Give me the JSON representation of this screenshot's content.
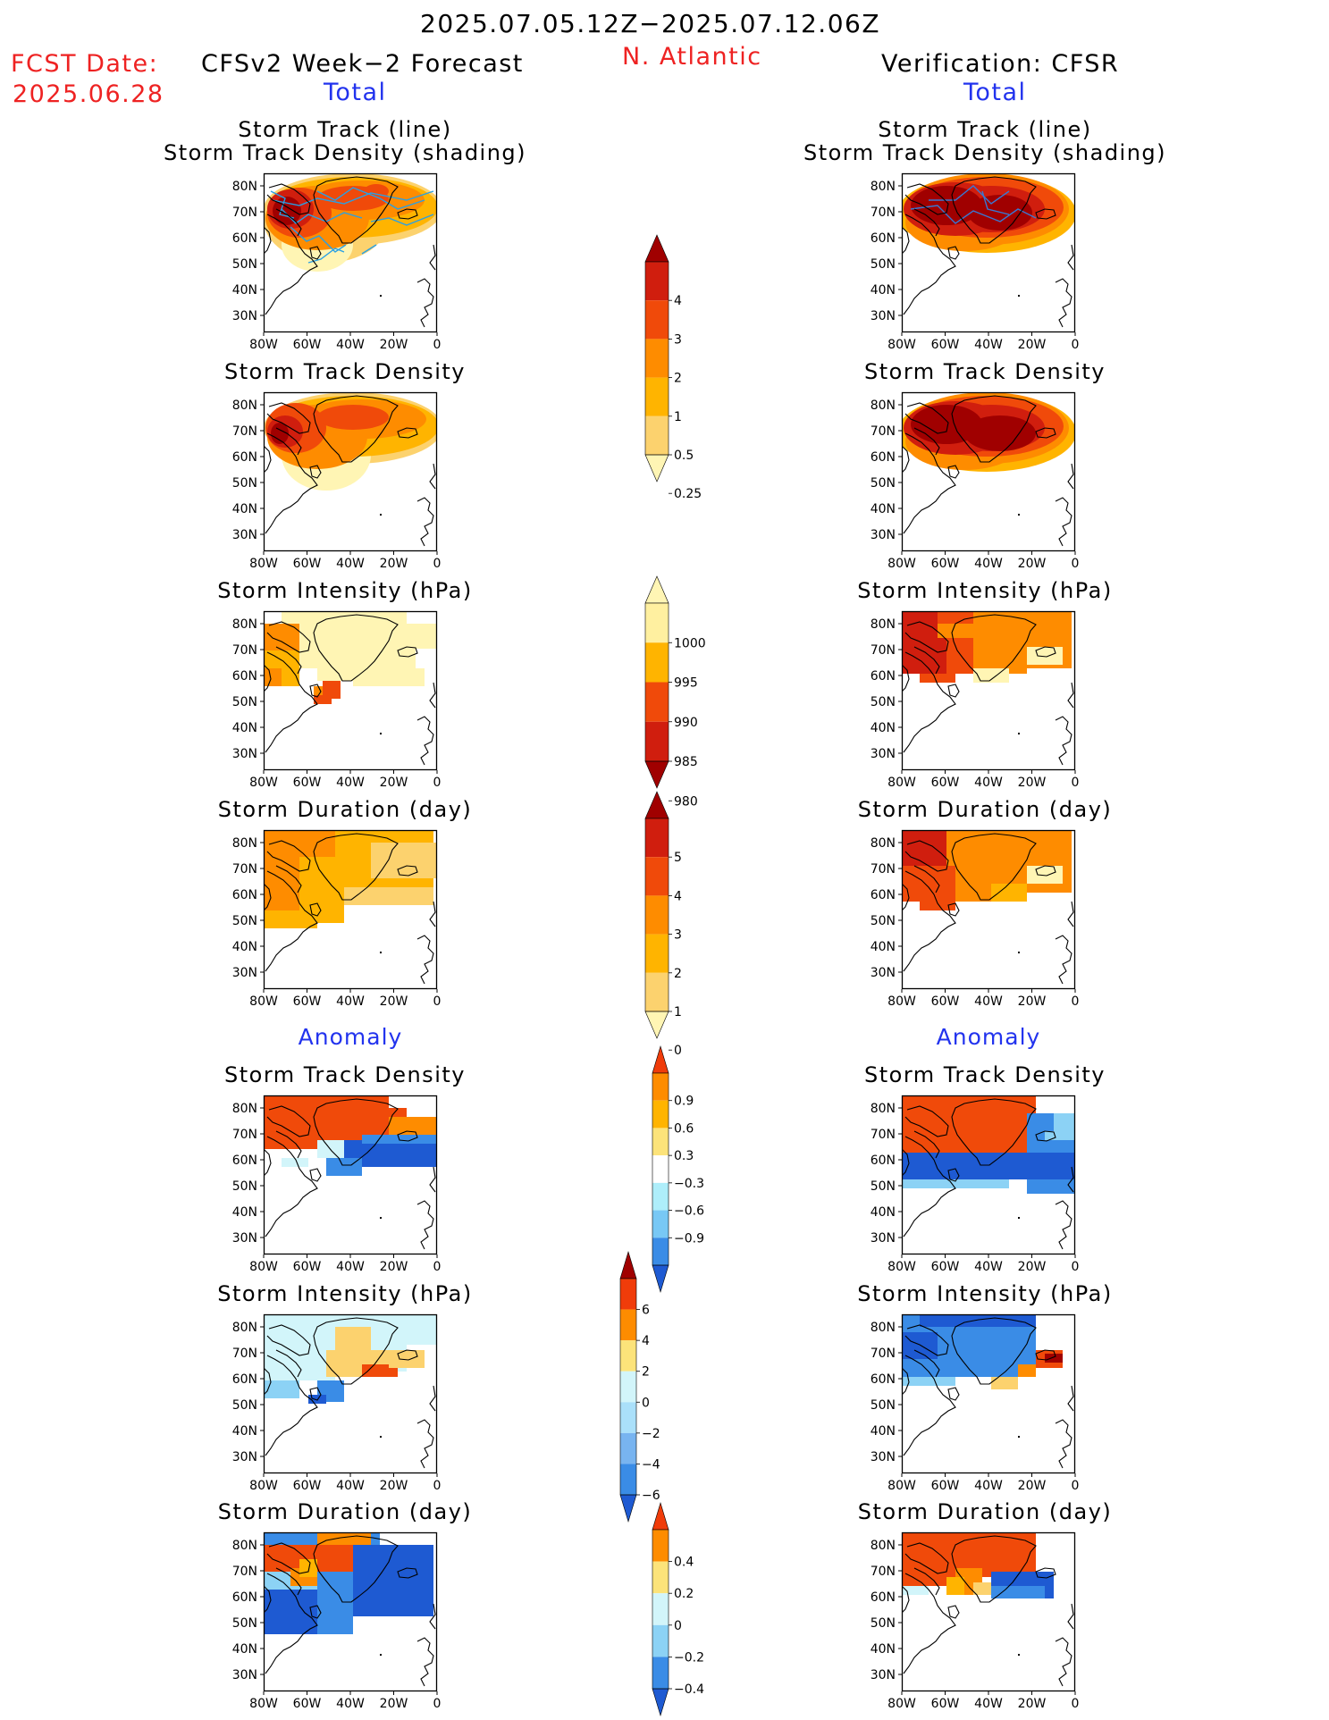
{
  "header": {
    "period": "2025.07.05.12Z−2025.07.12.06Z",
    "fcst_label": "FCST Date:",
    "fcst_date": "2025.06.28",
    "region": "N. Atlantic",
    "left_title": "CFSv2 Week−2 Forecast",
    "right_title": "Verification: CFSR",
    "total_left": "Total",
    "total_right": "Total"
  },
  "sections": {
    "anomaly_left": "Anomaly",
    "anomaly_right": "Anomaly"
  },
  "panel_titles": {
    "track1": "Storm Track (line)",
    "track2": "Storm Track Density (shading)",
    "density": "Storm Track Density",
    "intensity": "Storm Intensity (hPa)",
    "duration": "Storm Duration (day)"
  },
  "map_axes": {
    "lat_ticks": [
      "80N",
      "70N",
      "60N",
      "50N",
      "40N",
      "30N"
    ],
    "lon_ticks": [
      "80W",
      "60W",
      "40W",
      "20W",
      "0"
    ]
  },
  "colorbars": [
    {
      "name": "track-density",
      "labels": [
        "4",
        "3",
        "2",
        "1",
        "0.5",
        "0.25"
      ],
      "colors": [
        "#a00000",
        "#d01e0e",
        "#f04a0a",
        "#fe8c00",
        "#ffb400",
        "#fcd26e",
        "#fff5b4"
      ]
    },
    {
      "name": "intensity",
      "labels": [
        "1000",
        "995",
        "990",
        "985",
        "980"
      ],
      "colors": [
        "#fff5b4",
        "#fff0a0",
        "#ffb400",
        "#f04a0a",
        "#d01e0e",
        "#a00000"
      ]
    },
    {
      "name": "duration",
      "labels": [
        "5",
        "4",
        "3",
        "2",
        "1",
        "0"
      ],
      "colors": [
        "#a00000",
        "#d01e0e",
        "#f04a0a",
        "#fe8c00",
        "#ffb400",
        "#fcd26e",
        "#fff5b4"
      ]
    },
    {
      "name": "density-anomaly",
      "labels": [
        "0.9",
        "0.6",
        "0.3",
        "−0.3",
        "−0.6",
        "−0.9"
      ],
      "colors": [
        "#f03c0a",
        "#fe8c00",
        "#ffb400",
        "#fce37a",
        "#ffffff",
        "#aeeefa",
        "#78c8f5",
        "#3a8ce6",
        "#1e5ad2"
      ]
    },
    {
      "name": "intensity-anomaly",
      "labels": [
        "6",
        "4",
        "2",
        "0",
        "−2",
        "−4",
        "−6"
      ],
      "colors": [
        "#a00000",
        "#f03c0a",
        "#fe8c00",
        "#fce37a",
        "#d2f5fa",
        "#aae0fa",
        "#78b4f0",
        "#3a8ce6",
        "#1e5ad2"
      ]
    },
    {
      "name": "duration-anomaly",
      "labels": [
        "0.4",
        "0.2",
        "0",
        "−0.2",
        "−0.4"
      ],
      "colors": [
        "#f03c0a",
        "#fe8c00",
        "#fce37a",
        "#d2f5fa",
        "#8cd2f5",
        "#3a8ce6",
        "#1e5ad2"
      ]
    }
  ],
  "palette": {
    "text_red": "#ee2222",
    "text_blue": "#2233ee",
    "storm_track_line": "#28a0e6"
  }
}
